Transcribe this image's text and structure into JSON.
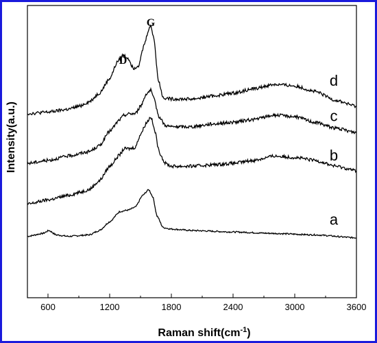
{
  "chart_data": {
    "type": "line",
    "xlabel": "Raman shift(cm",
    "xlabel_sup": "-1",
    "xlabel_end": ")",
    "ylabel": "Intensity(a.u.)",
    "xlim": [
      400,
      3600
    ],
    "ylim": [
      0,
      100
    ],
    "x_ticks": [
      600,
      1200,
      1800,
      2400,
      3000,
      3600
    ],
    "y_ticks_shown": false,
    "grid": false,
    "frame_color": "#1a1adc",
    "line_color": "#000000",
    "annotations": [
      {
        "text": "D",
        "x": 1330,
        "y": 80
      },
      {
        "text": "G",
        "x": 1600,
        "y": 93
      }
    ],
    "series": [
      {
        "name": "a",
        "label_at": {
          "x": 3380,
          "y": 25
        },
        "points": [
          [
            400,
            21
          ],
          [
            550,
            22
          ],
          [
            610,
            23
          ],
          [
            680,
            21.5
          ],
          [
            800,
            21
          ],
          [
            1000,
            21.5
          ],
          [
            1100,
            23
          ],
          [
            1200,
            26
          ],
          [
            1300,
            29.5
          ],
          [
            1380,
            30
          ],
          [
            1450,
            31
          ],
          [
            1520,
            35
          ],
          [
            1580,
            37
          ],
          [
            1620,
            34.5
          ],
          [
            1660,
            28
          ],
          [
            1720,
            24
          ],
          [
            1800,
            23.5
          ],
          [
            2000,
            23
          ],
          [
            2400,
            22.5
          ],
          [
            2800,
            22
          ],
          [
            3200,
            21.5
          ],
          [
            3600,
            20.5
          ]
        ]
      },
      {
        "name": "b",
        "label_at": {
          "x": 3380,
          "y": 47
        },
        "points": [
          [
            400,
            32
          ],
          [
            600,
            33.5
          ],
          [
            800,
            35
          ],
          [
            900,
            36
          ],
          [
            1000,
            37
          ],
          [
            1100,
            40
          ],
          [
            1200,
            45
          ],
          [
            1300,
            49
          ],
          [
            1340,
            51
          ],
          [
            1400,
            51
          ],
          [
            1450,
            51.5
          ],
          [
            1500,
            56
          ],
          [
            1560,
            60
          ],
          [
            1600,
            62
          ],
          [
            1640,
            57
          ],
          [
            1680,
            50
          ],
          [
            1740,
            46
          ],
          [
            1800,
            45
          ],
          [
            2000,
            45
          ],
          [
            2200,
            45.5
          ],
          [
            2400,
            46
          ],
          [
            2600,
            47
          ],
          [
            2800,
            48.5
          ],
          [
            3000,
            48
          ],
          [
            3200,
            47
          ],
          [
            3400,
            45
          ],
          [
            3600,
            43.5
          ]
        ]
      },
      {
        "name": "c",
        "label_at": {
          "x": 3380,
          "y": 60.5
        },
        "points": [
          [
            400,
            46
          ],
          [
            600,
            47
          ],
          [
            800,
            48.5
          ],
          [
            1000,
            50
          ],
          [
            1100,
            52
          ],
          [
            1200,
            57
          ],
          [
            1300,
            61
          ],
          [
            1340,
            62.5
          ],
          [
            1400,
            63
          ],
          [
            1450,
            63
          ],
          [
            1500,
            65.5
          ],
          [
            1560,
            70
          ],
          [
            1600,
            71
          ],
          [
            1630,
            68
          ],
          [
            1680,
            62
          ],
          [
            1740,
            59
          ],
          [
            1800,
            58.5
          ],
          [
            2000,
            58.5
          ],
          [
            2200,
            59.5
          ],
          [
            2400,
            60
          ],
          [
            2600,
            61
          ],
          [
            2800,
            62.5
          ],
          [
            3000,
            62
          ],
          [
            3200,
            60
          ],
          [
            3400,
            58
          ],
          [
            3600,
            56.5
          ]
        ]
      },
      {
        "name": "d",
        "label_at": {
          "x": 3380,
          "y": 72.5
        },
        "points": [
          [
            400,
            63
          ],
          [
            600,
            63.5
          ],
          [
            800,
            64.5
          ],
          [
            900,
            65.5
          ],
          [
            1000,
            67
          ],
          [
            1100,
            70
          ],
          [
            1200,
            75
          ],
          [
            1280,
            81
          ],
          [
            1330,
            83
          ],
          [
            1380,
            82
          ],
          [
            1430,
            78.5
          ],
          [
            1480,
            79.5
          ],
          [
            1540,
            87
          ],
          [
            1580,
            92
          ],
          [
            1600,
            93
          ],
          [
            1630,
            89
          ],
          [
            1670,
            75
          ],
          [
            1720,
            68.5
          ],
          [
            1800,
            68
          ],
          [
            2000,
            68
          ],
          [
            2200,
            69
          ],
          [
            2400,
            70
          ],
          [
            2600,
            71.5
          ],
          [
            2800,
            73
          ],
          [
            3000,
            72.5
          ],
          [
            3200,
            70.5
          ],
          [
            3400,
            67.5
          ],
          [
            3600,
            65.5
          ]
        ]
      }
    ]
  }
}
